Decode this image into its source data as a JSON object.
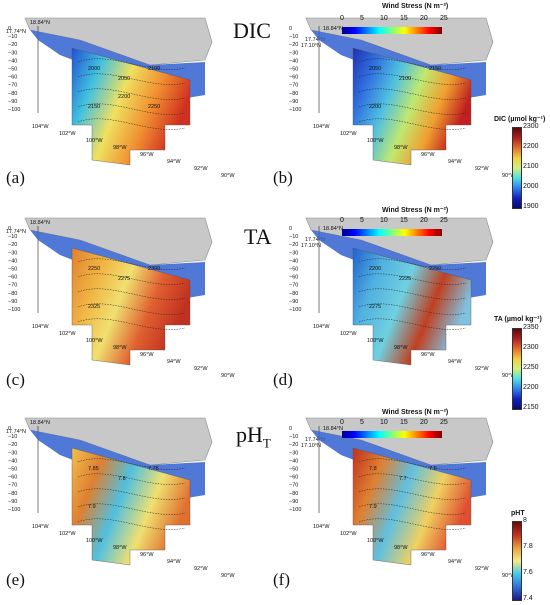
{
  "variables": {
    "dic": "DIC",
    "ta": "TA",
    "ph": "pH",
    "ph_sub": "T"
  },
  "panel_labels": [
    "(a)",
    "(b)",
    "(c)",
    "(d)",
    "(e)",
    "(f)"
  ],
  "lat_labels": [
    "18.84°N",
    "17.74°N",
    "17.10°N"
  ],
  "depth_ticks": [
    "0",
    "−10",
    "−20",
    "−30",
    "−40",
    "−50",
    "−60",
    "−70",
    "−80",
    "−90",
    "−100"
  ],
  "lon_labels": [
    "104°W",
    "102°W",
    "100°W",
    "98°W",
    "96°W",
    "94°W",
    "92°W",
    "90°W"
  ],
  "wind_stress": {
    "title": "Wind Stress  (N m⁻²)",
    "ticks": [
      "0",
      "5",
      "10",
      "15",
      "20",
      "25"
    ]
  },
  "colorbars": {
    "dic": {
      "title": "DIC  (µmol kg⁻¹)",
      "ticks": [
        "2300",
        "2200",
        "2100",
        "2000",
        "1900"
      ]
    },
    "ta": {
      "title": "TA  (µmol kg⁻¹)",
      "ticks": [
        "2350",
        "2300",
        "2250",
        "2200",
        "2150"
      ]
    },
    "ph": {
      "title": "pHT",
      "ticks": [
        "8",
        "7.8",
        "7.6",
        "7.4"
      ]
    }
  },
  "contour_labels": {
    "dic_a": [
      "2000",
      "2050",
      "2100",
      "2150",
      "2200",
      "2250"
    ],
    "dic_b": [
      "2050",
      "2100",
      "2150",
      "2200"
    ],
    "ta_c": [
      "2250",
      "2275",
      "2300",
      "2325"
    ],
    "ta_d": [
      "2200",
      "2225",
      "2250",
      "2275"
    ],
    "ph_e": [
      "7.85",
      "7.8",
      "7.75",
      "7.9"
    ],
    "ph_f": [
      "7.8",
      "7.7",
      "7.6",
      "7.9"
    ]
  },
  "colors": {
    "land": "#c8c8c8",
    "land_edge": "#8a8a8a",
    "jet": [
      "#00008f",
      "#0000ff",
      "#0080ff",
      "#00ffff",
      "#80ff80",
      "#ffff00",
      "#ff8000",
      "#ff0000",
      "#800000"
    ],
    "ph_scale": [
      "#1a1a8c",
      "#2f6fd8",
      "#45c8e8",
      "#f5e98a",
      "#e8a040",
      "#b8402a",
      "#7a1010"
    ]
  }
}
